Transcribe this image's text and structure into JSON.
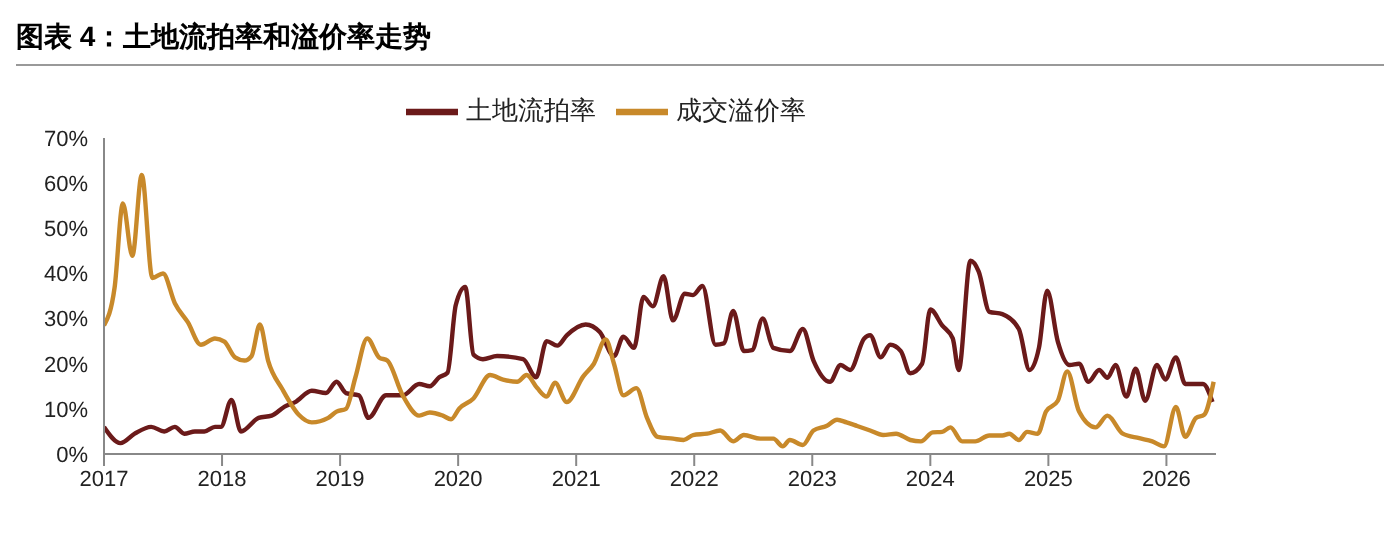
{
  "chart_data": {
    "type": "line",
    "title": "图表 4：土地流拍率和溢价率走势",
    "xlim": [
      2017,
      2026.42
    ],
    "xticks": [
      2017,
      2018,
      2019,
      2020,
      2021,
      2022,
      2023,
      2024,
      2025,
      2026
    ],
    "ylim": [
      0,
      70
    ],
    "yticks": [
      {
        "value": 0,
        "label": "0%"
      },
      {
        "value": 10,
        "label": "10%"
      },
      {
        "value": 20,
        "label": "20%"
      },
      {
        "value": 30,
        "label": "30%"
      },
      {
        "value": 40,
        "label": "40%"
      },
      {
        "value": 50,
        "label": "50%"
      },
      {
        "value": 60,
        "label": "60%"
      },
      {
        "value": 70,
        "label": "70%"
      }
    ],
    "grid": false,
    "legend": "top",
    "marker": "none",
    "line_style": "solid",
    "series": [
      {
        "name": "土地流拍率",
        "color": "#6b1a1a",
        "x": [
          2017.0,
          2017.14,
          2017.26,
          2017.4,
          2017.51,
          2017.6,
          2017.68,
          2017.77,
          2017.85,
          2017.94,
          2017.99,
          2018.08,
          2018.16,
          2018.31,
          2018.42,
          2018.53,
          2018.62,
          2018.76,
          2018.88,
          2018.97,
          2019.05,
          2019.16,
          2019.24,
          2019.39,
          2019.53,
          2019.67,
          2019.76,
          2019.84,
          2019.91,
          2019.98,
          2020.06,
          2020.13,
          2020.21,
          2020.33,
          2020.55,
          2020.66,
          2020.75,
          2020.84,
          2020.92,
          2021.08,
          2021.2,
          2021.32,
          2021.4,
          2021.49,
          2021.57,
          2021.65,
          2021.74,
          2021.82,
          2021.92,
          2021.99,
          2022.07,
          2022.18,
          2022.25,
          2022.33,
          2022.42,
          2022.49,
          2022.58,
          2022.67,
          2022.81,
          2022.92,
          2023.01,
          2023.15,
          2023.24,
          2023.32,
          2023.44,
          2023.49,
          2023.58,
          2023.66,
          2023.75,
          2023.83,
          2023.93,
          2024.0,
          2024.1,
          2024.19,
          2024.24,
          2024.34,
          2024.41,
          2024.5,
          2024.61,
          2024.75,
          2024.84,
          2024.92,
          2024.99,
          2025.08,
          2025.18,
          2025.26,
          2025.34,
          2025.43,
          2025.5,
          2025.57,
          2025.66,
          2025.74,
          2025.82,
          2025.92,
          2025.99,
          2026.08,
          2026.16,
          2026.31,
          2026.39
        ],
        "values": [
          6,
          2.4,
          4.5,
          6,
          5,
          6,
          4.5,
          5,
          5,
          6,
          6,
          12,
          5,
          8,
          8.5,
          10.5,
          11.5,
          14,
          13.5,
          16,
          13.5,
          13,
          8,
          13,
          13,
          15.5,
          15,
          17,
          18,
          33,
          37,
          22,
          21,
          21.7,
          21,
          17,
          25,
          24,
          26.3,
          28.7,
          27,
          21.7,
          26,
          23.5,
          34.8,
          32.7,
          39.4,
          29.6,
          35.5,
          35.2,
          37.2,
          24.2,
          24.5,
          31.7,
          22.8,
          23,
          30,
          23.5,
          22.8,
          27.7,
          20.7,
          16,
          19.7,
          18.6,
          25.6,
          26.3,
          21.4,
          24.2,
          22.8,
          17.9,
          20,
          32,
          28.5,
          25.6,
          18.6,
          42.8,
          40.4,
          31.5,
          31,
          27.7,
          18.6,
          23.5,
          36.2,
          24.9,
          19.7,
          20,
          16,
          18.6,
          16.9,
          19.7,
          12.7,
          18.9,
          11.8,
          19.7,
          16.5,
          21.4,
          15.5,
          15.5,
          11.5
        ]
      },
      {
        "name": "成交溢价率",
        "color": "#c8892a",
        "x": [
          2017.0,
          2017.09,
          2017.16,
          2017.24,
          2017.32,
          2017.41,
          2017.5,
          2017.6,
          2017.71,
          2017.82,
          2017.94,
          2018.02,
          2018.11,
          2018.19,
          2018.25,
          2018.32,
          2018.39,
          2018.51,
          2018.65,
          2018.76,
          2018.9,
          2018.97,
          2019.05,
          2019.13,
          2019.23,
          2019.33,
          2019.4,
          2019.53,
          2019.67,
          2019.76,
          2019.87,
          2019.94,
          2020.01,
          2020.13,
          2020.27,
          2020.38,
          2020.5,
          2020.58,
          2020.67,
          2020.75,
          2020.82,
          2020.92,
          2021.06,
          2021.15,
          2021.25,
          2021.32,
          2021.4,
          2021.51,
          2021.6,
          2021.69,
          2021.82,
          2021.91,
          2021.99,
          2022.11,
          2022.22,
          2022.33,
          2022.42,
          2022.56,
          2022.67,
          2022.75,
          2022.81,
          2022.92,
          2023.01,
          2023.12,
          2023.21,
          2023.29,
          2023.38,
          2023.49,
          2023.6,
          2023.71,
          2023.83,
          2023.92,
          2024.02,
          2024.1,
          2024.17,
          2024.27,
          2024.38,
          2024.5,
          2024.61,
          2024.67,
          2024.75,
          2024.82,
          2024.91,
          2024.98,
          2025.08,
          2025.16,
          2025.26,
          2025.4,
          2025.5,
          2025.63,
          2025.77,
          2025.88,
          2025.98,
          2026.08,
          2026.16,
          2026.25,
          2026.32,
          2026.4
        ],
        "values": [
          28.5,
          36.9,
          55.5,
          43.9,
          61.8,
          39,
          40,
          33.4,
          29.2,
          24.2,
          25.6,
          24.9,
          21.4,
          20.7,
          21.7,
          28.7,
          20.7,
          14.4,
          8.7,
          7,
          8,
          9.4,
          10,
          17,
          25.6,
          21.4,
          20.7,
          13,
          8.5,
          9.2,
          8.5,
          7.7,
          10.1,
          12.3,
          17.5,
          16.5,
          16,
          17.5,
          14.6,
          12.7,
          15.8,
          11.5,
          17.2,
          20,
          25.4,
          20,
          13,
          14.6,
          8,
          3.8,
          3.4,
          3.1,
          4.2,
          4.5,
          5.2,
          2.8,
          4.2,
          3.4,
          3.4,
          1.7,
          3.1,
          2,
          5.2,
          6.2,
          7.6,
          7,
          6.2,
          5.2,
          4.2,
          4.5,
          3.1,
          2.8,
          4.8,
          4.9,
          5.9,
          2.8,
          2.8,
          4.1,
          4.1,
          4.5,
          3.1,
          4.9,
          4.5,
          9.4,
          11.8,
          18.3,
          9.4,
          5.9,
          8.5,
          4.5,
          3.5,
          2.8,
          1.7,
          10.4,
          3.8,
          8,
          8.7,
          16
        ]
      }
    ]
  }
}
